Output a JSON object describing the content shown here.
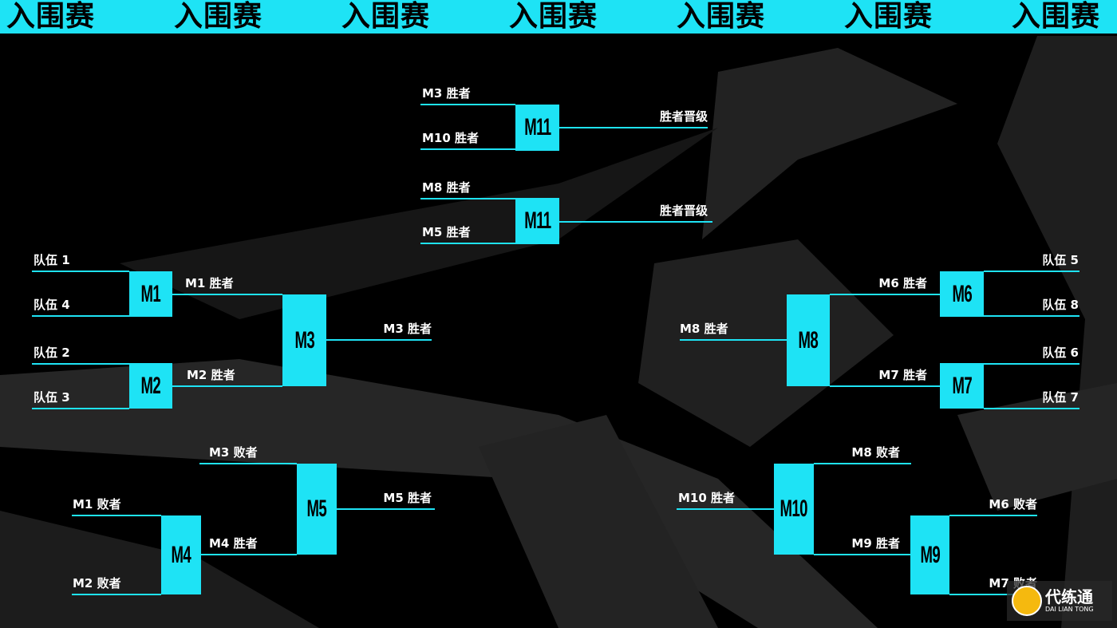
{
  "header": {
    "labels": [
      "入围赛",
      "入围赛",
      "入围赛",
      "入围赛",
      "入围赛",
      "入围赛",
      "入围赛"
    ]
  },
  "colors": {
    "accent": "#1ee3f5",
    "background": "#000000",
    "shapes": "#242424"
  },
  "matches": {
    "m11a": {
      "label": "M11",
      "top": "M3 胜者",
      "bottom": "M10 胜者",
      "out": "胜者晋级"
    },
    "m11b": {
      "label": "M11",
      "top": "M8 胜者",
      "bottom": "M5 胜者",
      "out": "胜者晋级"
    },
    "m1": {
      "label": "M1",
      "top": "队伍 1",
      "bottom": "队伍 4",
      "out": "M1 胜者"
    },
    "m2": {
      "label": "M2",
      "top": "队伍 2",
      "bottom": "队伍 3",
      "out": "M2 胜者"
    },
    "m3": {
      "label": "M3",
      "out": "M3 胜者"
    },
    "m4": {
      "label": "M4",
      "top": "M1 败者",
      "bottom": "M2 败者"
    },
    "m5": {
      "label": "M5",
      "top": "M3 败者",
      "bottom": "M4 胜者",
      "out": "M5 胜者"
    },
    "m6": {
      "label": "M6",
      "top": "队伍 5",
      "bottom": "队伍 8",
      "out": "M6 胜者"
    },
    "m7": {
      "label": "M7",
      "top": "队伍 6",
      "bottom": "队伍 7",
      "out": "M7 胜者"
    },
    "m8": {
      "label": "M8",
      "out": "M8 胜者"
    },
    "m9": {
      "label": "M9",
      "top": "M6 败者",
      "bottom": "M7 败者"
    },
    "m10": {
      "label": "M10",
      "top": "M8 败者",
      "bottom": "M9 胜者",
      "out": "M10 胜者"
    }
  },
  "watermark": {
    "name": "代练通",
    "subtitle": "DAI LIAN TONG"
  }
}
